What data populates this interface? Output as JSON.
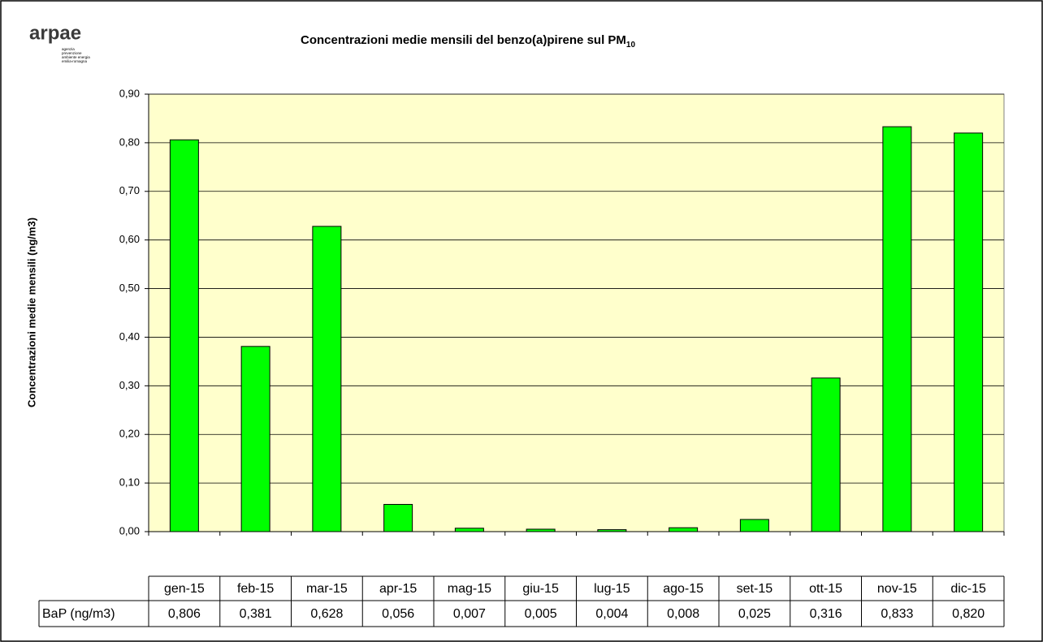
{
  "chart_data": {
    "type": "bar",
    "logo": "arpae",
    "logo_caption": [
      "agenzia",
      "prevenzione",
      "ambiente energia",
      "emilia-romagna"
    ],
    "title": "Concentrazioni medie mensili del benzo(a)pirene sul PM",
    "title_sub": "10",
    "y_label": "Concentrazioni medie mensili (ng/m3)",
    "categories": [
      "gen-15",
      "feb-15",
      "mar-15",
      "apr-15",
      "mag-15",
      "giu-15",
      "lug-15",
      "ago-15",
      "set-15",
      "ott-15",
      "nov-15",
      "dic-15"
    ],
    "series": [
      {
        "name": "BaP (ng/m3)",
        "color": "#00ff00",
        "values": [
          0.806,
          0.381,
          0.628,
          0.056,
          0.007,
          0.005,
          0.004,
          0.008,
          0.025,
          0.316,
          0.833,
          0.82
        ],
        "value_labels": [
          "0,806",
          "0,381",
          "0,628",
          "0,056",
          "0,007",
          "0,005",
          "0,004",
          "0,008",
          "0,025",
          "0,316",
          "0,833",
          "0,820"
        ]
      }
    ],
    "ylim": [
      0,
      0.9
    ],
    "yticks": [
      {
        "value": 0,
        "label": "0,00"
      },
      {
        "value": 0.1,
        "label": "0,10"
      },
      {
        "value": 0.2,
        "label": "0,20"
      },
      {
        "value": 0.3,
        "label": "0,30"
      },
      {
        "value": 0.4,
        "label": "0,40"
      },
      {
        "value": 0.5,
        "label": "0,50"
      },
      {
        "value": 0.6,
        "label": "0,60"
      },
      {
        "value": 0.7,
        "label": "0,70"
      },
      {
        "value": 0.8,
        "label": "0,80"
      },
      {
        "value": 0.9,
        "label": "0,90"
      }
    ],
    "grid": true,
    "plot_background": "#ffffcc"
  }
}
